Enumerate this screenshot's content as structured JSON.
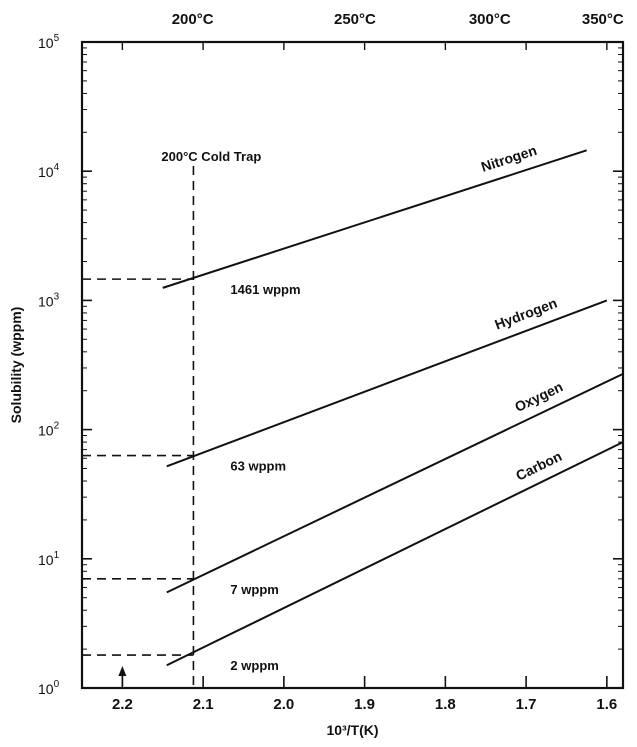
{
  "chart_data": {
    "type": "line",
    "title": "",
    "xlabel": "10³/T(K)",
    "ylabel": "Solubility (wppm)",
    "x_reversed": true,
    "xlim": [
      2.25,
      1.58
    ],
    "ylim": [
      1,
      100000
    ],
    "y_scale": "log",
    "grid": false,
    "x_ticks": [
      {
        "value": 2.2,
        "label": "2.2"
      },
      {
        "value": 2.1,
        "label": "2.1"
      },
      {
        "value": 2.0,
        "label": "2.0"
      },
      {
        "value": 1.9,
        "label": "1.9"
      },
      {
        "value": 1.8,
        "label": "1.8"
      },
      {
        "value": 1.7,
        "label": "1.7"
      },
      {
        "value": 1.6,
        "label": "1.6"
      }
    ],
    "y_ticks": [
      {
        "value": 1,
        "base": "10",
        "exp": "0"
      },
      {
        "value": 10,
        "base": "10",
        "exp": "1"
      },
      {
        "value": 100,
        "base": "10",
        "exp": "2"
      },
      {
        "value": 1000,
        "base": "10",
        "exp": "3"
      },
      {
        "value": 10000,
        "base": "10",
        "exp": "4"
      },
      {
        "value": 100000,
        "base": "10",
        "exp": "5"
      }
    ],
    "top_axis_ticks": [
      {
        "x": 2.113,
        "label": "200°C"
      },
      {
        "x": 1.912,
        "label": "250°C"
      },
      {
        "x": 1.745,
        "label": "300°C"
      },
      {
        "x": 1.605,
        "label": "350°C"
      }
    ],
    "series": [
      {
        "name": "Nitrogen",
        "x": [
          2.15,
          1.625
        ],
        "y": [
          1250,
          14500
        ]
      },
      {
        "name": "Hydrogen",
        "x": [
          2.145,
          1.6
        ],
        "y": [
          52,
          1000
        ]
      },
      {
        "name": "Oxygen",
        "x": [
          2.145,
          1.58
        ],
        "y": [
          5.5,
          270
        ]
      },
      {
        "name": "Carbon",
        "x": [
          2.145,
          1.58
        ],
        "y": [
          1.5,
          80
        ]
      }
    ],
    "cold_trap": {
      "x": 2.112,
      "label": "200°C Cold Trap"
    },
    "annotations": [
      {
        "series": "Nitrogen",
        "y": 1461,
        "text": "1461 wppm"
      },
      {
        "series": "Hydrogen",
        "y": 63,
        "text": "63 wppm"
      },
      {
        "series": "Oxygen",
        "y": 7,
        "text": "7 wppm"
      },
      {
        "series": "Carbon",
        "y": 1.8,
        "text": "2 wppm"
      }
    ],
    "marker_arrow_x": 2.2
  }
}
